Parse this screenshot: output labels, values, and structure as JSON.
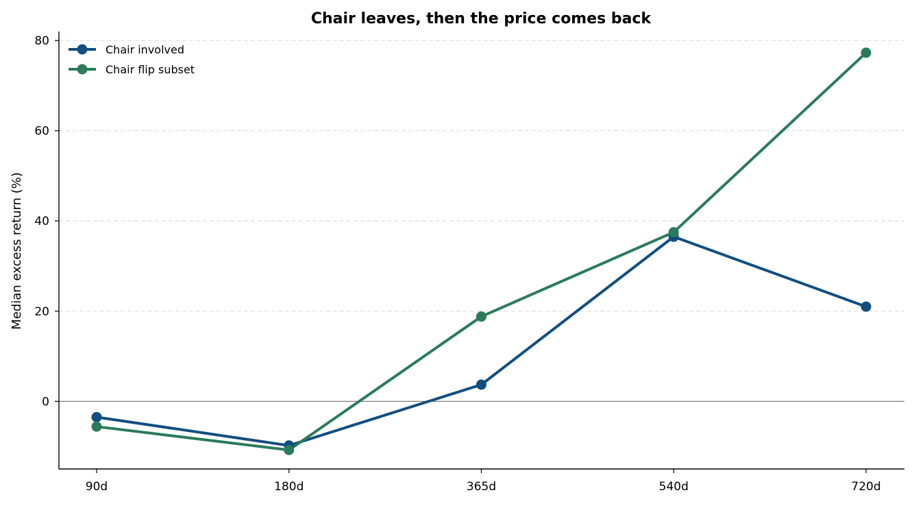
{
  "chart_data": {
    "type": "line",
    "title": "Chair leaves, then the price comes back",
    "xlabel": "",
    "ylabel": "Median excess return (%)",
    "categories": [
      "90d",
      "180d",
      "365d",
      "540d",
      "720d"
    ],
    "ylim": [
      -15,
      82
    ],
    "yticks": [
      0,
      20,
      40,
      60,
      80
    ],
    "grid": "horizontal dashed",
    "zero_line": true,
    "legend_position": "top-left",
    "series": [
      {
        "name": "Chair involved",
        "color": "#124e80",
        "values": [
          -3.5,
          -9.8,
          3.7,
          36.5,
          21.0
        ]
      },
      {
        "name": "Chair flip subset",
        "color": "#2b7b5b",
        "values": [
          -5.6,
          -10.8,
          18.8,
          37.5,
          77.3
        ]
      }
    ]
  }
}
